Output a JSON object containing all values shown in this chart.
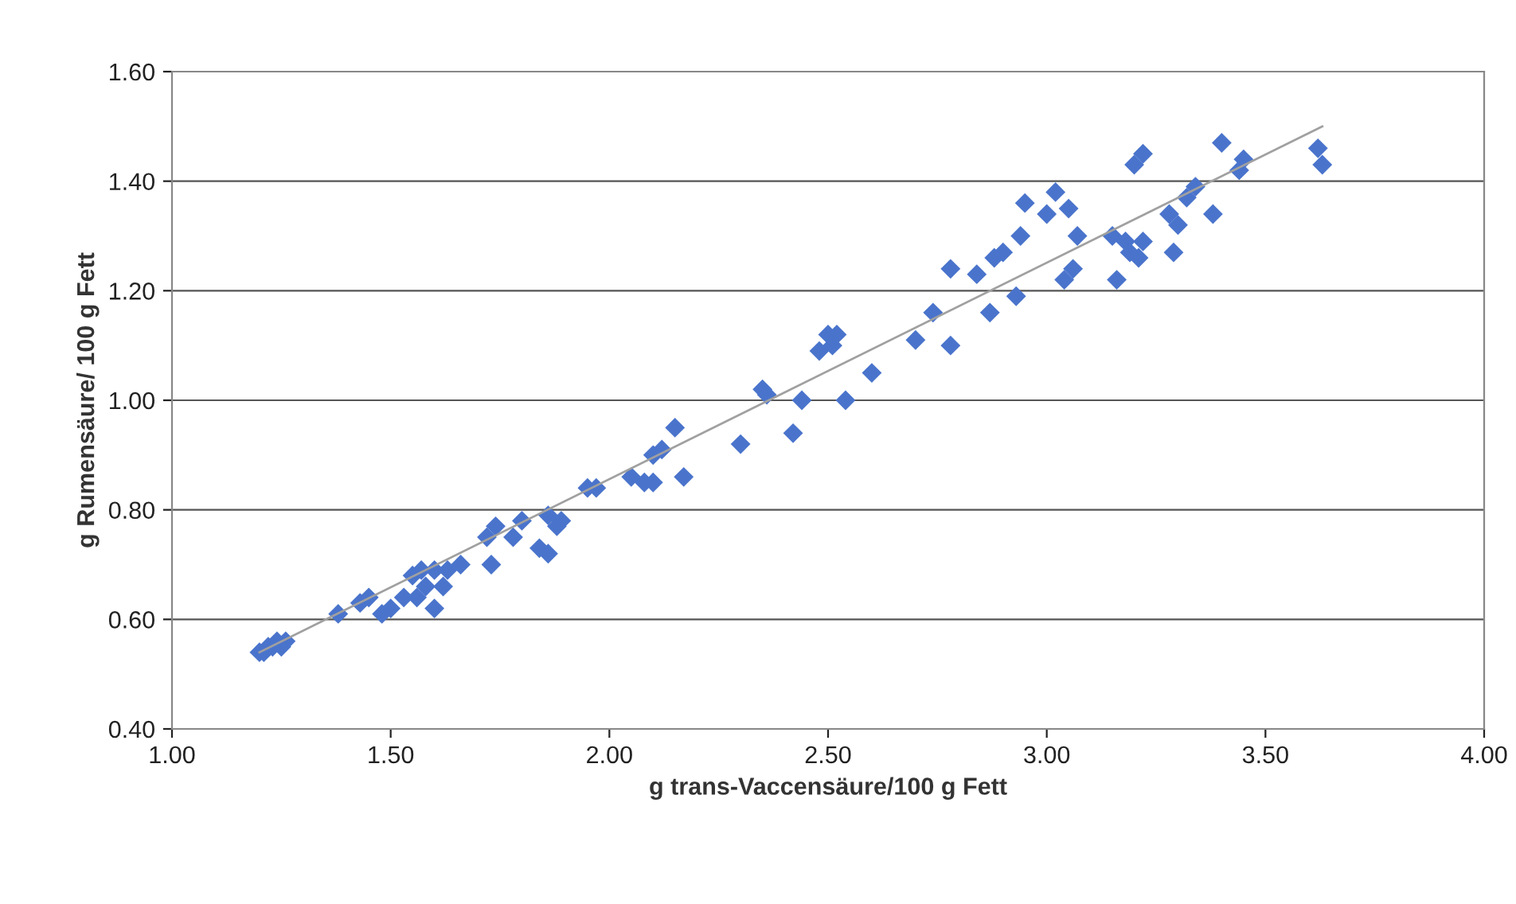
{
  "chart_data": {
    "type": "scatter",
    "xlabel": "g trans-Vaccensäure/100 g Fett",
    "ylabel": "g Rumensäure/ 100 g Fett",
    "xlim": [
      1.0,
      4.0
    ],
    "xticks": [
      {
        "value": 1.0,
        "label": "1.00"
      },
      {
        "value": 1.5,
        "label": "1.50"
      },
      {
        "value": 2.0,
        "label": "2.00"
      },
      {
        "value": 2.5,
        "label": "2.50"
      },
      {
        "value": 3.0,
        "label": "3.00"
      },
      {
        "value": 3.5,
        "label": "3.50"
      },
      {
        "value": 4.0,
        "label": "4.00"
      }
    ],
    "ylim": [
      0.4,
      1.6
    ],
    "yticks": [
      {
        "value": 0.4,
        "label": "0.40"
      },
      {
        "value": 0.6,
        "label": "0.60"
      },
      {
        "value": 0.8,
        "label": "0.80"
      },
      {
        "value": 1.0,
        "label": "1.00"
      },
      {
        "value": 1.2,
        "label": "1.20"
      },
      {
        "value": 1.4,
        "label": "1.40"
      },
      {
        "value": 1.6,
        "label": "1.60"
      }
    ],
    "grid": "y",
    "marker": "diamond",
    "series": [
      {
        "color": "#4a74cc",
        "x": [
          1.2,
          1.21,
          1.22,
          1.23,
          1.24,
          1.25,
          1.26,
          1.38,
          1.43,
          1.45,
          1.48,
          1.5,
          1.53,
          1.55,
          1.56,
          1.57,
          1.58,
          1.6,
          1.6,
          1.62,
          1.63,
          1.66,
          1.72,
          1.73,
          1.74,
          1.78,
          1.8,
          1.84,
          1.86,
          1.86,
          1.88,
          1.89,
          1.95,
          1.97,
          2.05,
          2.08,
          2.1,
          2.1,
          2.12,
          2.15,
          2.17,
          2.3,
          2.35,
          2.36,
          2.42,
          2.44,
          2.48,
          2.5,
          2.51,
          2.52,
          2.54,
          2.6,
          2.7,
          2.74,
          2.78,
          2.78,
          2.84,
          2.87,
          2.88,
          2.9,
          2.93,
          2.94,
          2.95,
          3.0,
          3.02,
          3.04,
          3.05,
          3.06,
          3.07,
          3.15,
          3.16,
          3.18,
          3.19,
          3.2,
          3.21,
          3.22,
          3.22,
          3.28,
          3.29,
          3.3,
          3.32,
          3.34,
          3.38,
          3.4,
          3.44,
          3.45,
          3.62,
          3.63
        ],
        "values": [
          0.54,
          0.54,
          0.55,
          0.55,
          0.56,
          0.55,
          0.56,
          0.61,
          0.63,
          0.64,
          0.61,
          0.62,
          0.64,
          0.68,
          0.64,
          0.69,
          0.66,
          0.69,
          0.62,
          0.66,
          0.69,
          0.7,
          0.75,
          0.7,
          0.77,
          0.75,
          0.78,
          0.73,
          0.72,
          0.79,
          0.77,
          0.78,
          0.84,
          0.84,
          0.86,
          0.85,
          0.85,
          0.9,
          0.91,
          0.95,
          0.86,
          0.92,
          1.02,
          1.01,
          0.94,
          1.0,
          1.09,
          1.12,
          1.1,
          1.12,
          1.0,
          1.05,
          1.11,
          1.16,
          1.24,
          1.1,
          1.23,
          1.16,
          1.26,
          1.27,
          1.19,
          1.3,
          1.36,
          1.34,
          1.38,
          1.22,
          1.35,
          1.24,
          1.3,
          1.3,
          1.22,
          1.29,
          1.27,
          1.43,
          1.26,
          1.29,
          1.45,
          1.34,
          1.27,
          1.32,
          1.37,
          1.39,
          1.34,
          1.47,
          1.42,
          1.44,
          1.46,
          1.43
        ]
      },
      {
        "type": "line",
        "color": "#a0a0a0",
        "marker": "none",
        "x": [
          1.2,
          3.63
        ],
        "values": [
          0.54,
          1.5
        ]
      }
    ]
  }
}
